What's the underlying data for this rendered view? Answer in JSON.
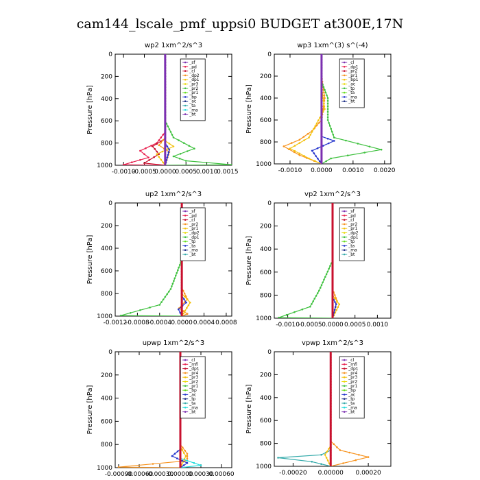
{
  "figure_title": "cam144_lscale_pmf_uppsi0  BUDGET at300E,17N",
  "colors": {
    "purple": "#7b2fb0",
    "red": "#e8214f",
    "crimson": "#c8102e",
    "orange": "#f7931e",
    "gold": "#f4c20d",
    "yellow": "#e8d800",
    "green": "#3fc13f",
    "lime": "#66dd22",
    "blue": "#2233cc",
    "navy": "#223388",
    "teal": "#33aaaa",
    "cyan": "#22dddd",
    "black": "#111111"
  },
  "chart_data": [
    {
      "type": "line",
      "title": "wp2   1xm^2/s^3",
      "ylabel": "Pressure  [hPa]",
      "xlim": [
        -0.0012,
        0.0016
      ],
      "ylim": [
        1000,
        0
      ],
      "xticks": [
        -0.001,
        -0.0005,
        0.0,
        0.0005,
        0.001,
        0.0015
      ],
      "xtick_labels": [
        "-0.0010",
        "-0.0005",
        "0.0000",
        "0.0005",
        "0.0010",
        "0.0015"
      ],
      "yticks": [
        0,
        200,
        400,
        600,
        800,
        1000
      ],
      "legend": [
        "_sf",
        "_pd",
        "_cl",
        "_dp2",
        "_dp1",
        "_pr3",
        "_pr2",
        "_pr1",
        "_bp",
        "_ac",
        "_ta",
        "_ma",
        "_bt"
      ],
      "series": [
        {
          "name": "_sf",
          "color": "purple",
          "points": [
            [
              0,
              0
            ],
            [
              0,
              300
            ],
            [
              0,
              600
            ],
            [
              0,
              800
            ],
            [
              0,
              900
            ],
            [
              0,
              1000
            ]
          ]
        },
        {
          "name": "_pd",
          "color": "red",
          "points": [
            [
              0,
              0
            ],
            [
              0,
              700
            ],
            [
              -0.0002,
              800
            ],
            [
              -0.0006,
              870
            ],
            [
              -0.0004,
              930
            ],
            [
              -0.001,
              995
            ],
            [
              0,
              1000
            ]
          ]
        },
        {
          "name": "_dp2",
          "color": "crimson",
          "points": [
            [
              0,
              0
            ],
            [
              0,
              760
            ],
            [
              -0.0003,
              830
            ],
            [
              -0.00015,
              900
            ],
            [
              -0.0005,
              980
            ],
            [
              0,
              1000
            ]
          ]
        },
        {
          "name": "_pr2",
          "color": "orange",
          "points": [
            [
              0,
              0
            ],
            [
              0,
              750
            ],
            [
              -0.00015,
              820
            ],
            [
              0.0001,
              880
            ],
            [
              0,
              1000
            ]
          ]
        },
        {
          "name": "_pr1",
          "color": "gold",
          "points": [
            [
              0,
              0
            ],
            [
              0,
              780
            ],
            [
              0.0002,
              830
            ],
            [
              -0.0002,
              900
            ],
            [
              0,
              1000
            ]
          ]
        },
        {
          "name": "_ac",
          "color": "green",
          "points": [
            [
              0,
              0
            ],
            [
              0,
              600
            ],
            [
              0.0002,
              750
            ],
            [
              0.0007,
              850
            ],
            [
              0.0002,
              920
            ],
            [
              0.0005,
              960
            ],
            [
              0.0016,
              995
            ],
            [
              0,
              1000
            ]
          ]
        },
        {
          "name": "_ta",
          "color": "blue",
          "points": [
            [
              0,
              0
            ],
            [
              0,
              800
            ],
            [
              0.0001,
              860
            ],
            [
              0,
              1000
            ]
          ]
        }
      ]
    },
    {
      "type": "line",
      "title": "wp3   1xm^(3) s^(-4)",
      "ylabel": "Pressure  [hPa]",
      "xlim": [
        -0.0015,
        0.0022
      ],
      "ylim": [
        1000,
        0
      ],
      "xticks": [
        -0.001,
        0.0,
        0.001,
        0.002
      ],
      "xtick_labels": [
        "-0.0010",
        "0.0000",
        "0.0010",
        "0.0020"
      ],
      "yticks": [
        0,
        200,
        400,
        600,
        800,
        1000
      ],
      "legend": [
        "_cl",
        "_dp1",
        "_pr2",
        "_pr1",
        "_bp1",
        "_ac",
        "_tp",
        "_ta",
        "_ma",
        "_bt"
      ],
      "series": [
        {
          "name": "_cl",
          "color": "red",
          "points": [
            [
              0,
              0
            ],
            [
              0,
              1000
            ]
          ]
        },
        {
          "name": "_pr2",
          "color": "orange",
          "points": [
            [
              0,
              0
            ],
            [
              0,
              200
            ],
            [
              0.0001,
              400
            ],
            [
              0,
              600
            ],
            [
              -0.0003,
              700
            ],
            [
              -0.0007,
              780
            ],
            [
              -0.0012,
              840
            ],
            [
              -0.0007,
              920
            ],
            [
              0,
              1000
            ]
          ]
        },
        {
          "name": "_pr1",
          "color": "gold",
          "points": [
            [
              0,
              0
            ],
            [
              0,
              300
            ],
            [
              0.0001,
              500
            ],
            [
              -0.0004,
              760
            ],
            [
              -0.001,
              860
            ],
            [
              -0.0004,
              950
            ],
            [
              0,
              1000
            ]
          ]
        },
        {
          "name": "_ac",
          "color": "green",
          "points": [
            [
              0,
              0
            ],
            [
              0,
              250
            ],
            [
              0.0002,
              400
            ],
            [
              0.0002,
              600
            ],
            [
              0.0004,
              760
            ],
            [
              0.0019,
              870
            ],
            [
              0.0003,
              950
            ],
            [
              0,
              1000
            ]
          ]
        },
        {
          "name": "_ta",
          "color": "blue",
          "points": [
            [
              0,
              0
            ],
            [
              0,
              750
            ],
            [
              0.0004,
              790
            ],
            [
              -0.0003,
              880
            ],
            [
              0,
              1000
            ]
          ]
        }
      ]
    },
    {
      "type": "line",
      "title": "up2   1xm^2/s^3",
      "ylabel": "Pressure  [hPa]",
      "xlim": [
        -0.0012,
        0.0009
      ],
      "ylim": [
        1000,
        0
      ],
      "xticks": [
        -0.0012,
        -0.0008,
        -0.0004,
        0.0,
        0.0004,
        0.0008
      ],
      "xtick_labels": [
        "-0.0012",
        "-0.0008",
        "-0.0004",
        "0.0000",
        "0.0004",
        "0.0008"
      ],
      "yticks": [
        0,
        200,
        400,
        600,
        800,
        1000
      ],
      "legend": [
        "_sf",
        "_pd",
        "_cl",
        "_pr2",
        "_pr1",
        "_dp2",
        "_dp1",
        "_tp",
        "_ta",
        "_ma",
        "_bt"
      ],
      "series": [
        {
          "name": "_pr2",
          "color": "orange",
          "points": [
            [
              0,
              0
            ],
            [
              0,
              750
            ],
            [
              0.0001,
              850
            ],
            [
              -5e-05,
              930
            ],
            [
              0.0001,
              980
            ],
            [
              0,
              1000
            ]
          ]
        },
        {
          "name": "_pr1",
          "color": "gold",
          "points": [
            [
              0,
              0
            ],
            [
              0,
              800
            ],
            [
              0.00015,
              880
            ],
            [
              0,
              1000
            ]
          ]
        },
        {
          "name": "_dp2",
          "color": "green",
          "points": [
            [
              0,
              0
            ],
            [
              0,
              500
            ],
            [
              -0.0002,
              760
            ],
            [
              -0.0004,
              900
            ],
            [
              -0.0011,
              995
            ],
            [
              0,
              1000
            ]
          ]
        },
        {
          "name": "_ta",
          "color": "blue",
          "points": [
            [
              0,
              0
            ],
            [
              0,
              820
            ],
            [
              8e-05,
              880
            ],
            [
              -6e-05,
              940
            ],
            [
              0,
              1000
            ]
          ]
        },
        {
          "name": "_cl",
          "color": "crimson",
          "points": [
            [
              0,
              0
            ],
            [
              0,
              1000
            ]
          ]
        }
      ]
    },
    {
      "type": "line",
      "title": "vp2   1xm^2/s^3",
      "ylabel": "Pressure  [hPa]",
      "xlim": [
        -0.0013,
        0.0013
      ],
      "ylim": [
        1000,
        0
      ],
      "xticks": [
        -0.001,
        -0.0005,
        0.0,
        0.0005,
        0.001
      ],
      "xtick_labels": [
        "-0.0010",
        "-0.0005",
        "0.0000",
        "0.0005",
        "0.0010"
      ],
      "yticks": [
        0,
        200,
        400,
        600,
        800,
        1000
      ],
      "legend": [
        "_sf",
        "_pd",
        "_cl",
        "_pr2",
        "_pr1",
        "_dp2",
        "_dp1",
        "_tp",
        "_ta",
        "_ma",
        "_bt"
      ],
      "series": [
        {
          "name": "_pr2",
          "color": "orange",
          "points": [
            [
              0,
              0
            ],
            [
              0,
              750
            ],
            [
              0.0001,
              850
            ],
            [
              0,
              1000
            ]
          ]
        },
        {
          "name": "_pr1",
          "color": "gold",
          "points": [
            [
              0,
              0
            ],
            [
              0,
              800
            ],
            [
              0.00015,
              880
            ],
            [
              0,
              1000
            ]
          ]
        },
        {
          "name": "_dp2",
          "color": "green",
          "points": [
            [
              0,
              0
            ],
            [
              0,
              500
            ],
            [
              -0.0003,
              760
            ],
            [
              -0.0005,
              900
            ],
            [
              -0.0012,
              995
            ],
            [
              0,
              1000
            ]
          ]
        },
        {
          "name": "_ta",
          "color": "blue",
          "points": [
            [
              0,
              0
            ],
            [
              0,
              820
            ],
            [
              8e-05,
              880
            ],
            [
              0,
              1000
            ]
          ]
        },
        {
          "name": "_cl",
          "color": "crimson",
          "points": [
            [
              0,
              0
            ],
            [
              0,
              1000
            ]
          ]
        }
      ]
    },
    {
      "type": "line",
      "title": "upwp   1xm^2/s^3",
      "ylabel": "Pressure  [hPa]",
      "xlim": [
        -0.00095,
        0.00075
      ],
      "ylim": [
        1000,
        0
      ],
      "xticks": [
        -0.0009,
        -0.0006,
        -0.0003,
        0.0,
        0.0003,
        0.0006
      ],
      "xtick_labels": [
        "-0.00090",
        "-0.00060",
        "-0.00030",
        "0.00000",
        "0.00030",
        "0.00060"
      ],
      "yticks": [
        0,
        200,
        400,
        600,
        800,
        1000
      ],
      "legend": [
        "_cl",
        "_mfl",
        "_dp1",
        "_pr4",
        "_pr3",
        "_pr2",
        "_pr1",
        "_bp",
        "_ac",
        "_tp",
        "_ta",
        "_ma",
        "_bt"
      ],
      "series": [
        {
          "name": "_pr2",
          "color": "orange",
          "points": [
            [
              0,
              0
            ],
            [
              0,
              800
            ],
            [
              0.0001,
              880
            ],
            [
              0.0001,
              940
            ],
            [
              -0.0009,
              995
            ],
            [
              0,
              1000
            ]
          ]
        },
        {
          "name": "_pr1",
          "color": "gold",
          "points": [
            [
              0,
              0
            ],
            [
              0,
              820
            ],
            [
              8e-05,
              900
            ],
            [
              0,
              1000
            ]
          ]
        },
        {
          "name": "_ta",
          "color": "blue",
          "points": [
            [
              0,
              0
            ],
            [
              0,
              840
            ],
            [
              -0.00012,
              900
            ],
            [
              0.0001,
              960
            ],
            [
              0,
              1000
            ]
          ]
        },
        {
          "name": "_ma",
          "color": "cyan",
          "points": [
            [
              0,
              0
            ],
            [
              0,
              920
            ],
            [
              0.0003,
              980
            ],
            [
              0,
              1000
            ]
          ]
        },
        {
          "name": "_dp1",
          "color": "crimson",
          "points": [
            [
              0,
              0
            ],
            [
              0,
              1000
            ]
          ]
        }
      ]
    },
    {
      "type": "line",
      "title": "vpwp   1xm^2/s^3",
      "ylabel": "Pressure  [hPa]",
      "xlim": [
        -0.0003,
        0.00032
      ],
      "ylim": [
        1000,
        0
      ],
      "xticks": [
        -0.0002,
        0.0,
        0.0002
      ],
      "xtick_labels": [
        "-0.00020",
        "0.00000",
        "0.00020"
      ],
      "yticks": [
        0,
        200,
        400,
        600,
        800,
        1000
      ],
      "legend": [
        "_cl",
        "_mfl",
        "_dp1",
        "_pr4",
        "_pr3",
        "_pr2",
        "_pr1",
        "_bp",
        "_ac",
        "_tp",
        "_ta",
        "_ma",
        "_bt"
      ],
      "series": [
        {
          "name": "_pr2",
          "color": "orange",
          "points": [
            [
              0,
              0
            ],
            [
              0,
              780
            ],
            [
              5e-05,
              860
            ],
            [
              0.0002,
              920
            ],
            [
              0,
              1000
            ]
          ]
        },
        {
          "name": "_ta",
          "color": "teal",
          "points": [
            [
              0,
              0
            ],
            [
              0,
              860
            ],
            [
              -5e-05,
              900
            ],
            [
              -0.00028,
              925
            ],
            [
              -0.0001,
              960
            ],
            [
              0,
              1000
            ]
          ]
        },
        {
          "name": "_pr1",
          "color": "gold",
          "points": [
            [
              0,
              0
            ],
            [
              0,
              820
            ],
            [
              -3e-05,
              900
            ],
            [
              0,
              1000
            ]
          ]
        },
        {
          "name": "_dp1",
          "color": "crimson",
          "points": [
            [
              0,
              0
            ],
            [
              0,
              1000
            ]
          ]
        }
      ]
    }
  ]
}
